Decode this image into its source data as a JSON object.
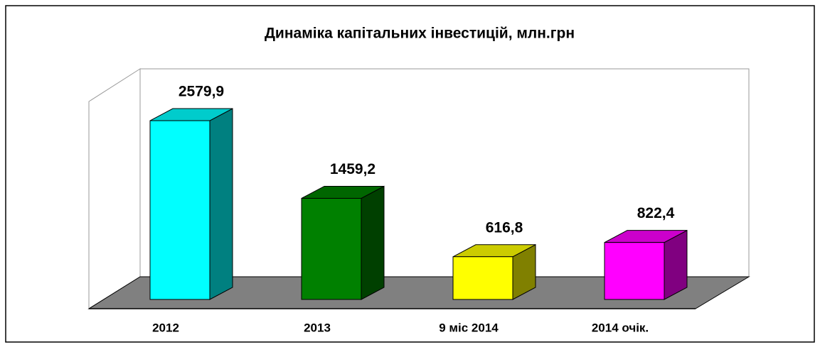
{
  "chart_data": {
    "type": "bar3d",
    "title": "Динаміка капітальних інвестицій, млн.грн",
    "categories": [
      "2012",
      "2013",
      "9 міс 2014",
      "2014 очік."
    ],
    "values": [
      2579.9,
      1459.2,
      616.8,
      822.4
    ],
    "value_labels": [
      "2579,9",
      "1459,2",
      "616,8",
      "822,4"
    ],
    "colors": [
      "#00ffff",
      "#008000",
      "#ffff00",
      "#ff00ff"
    ],
    "ylim": [
      0,
      3000
    ]
  }
}
